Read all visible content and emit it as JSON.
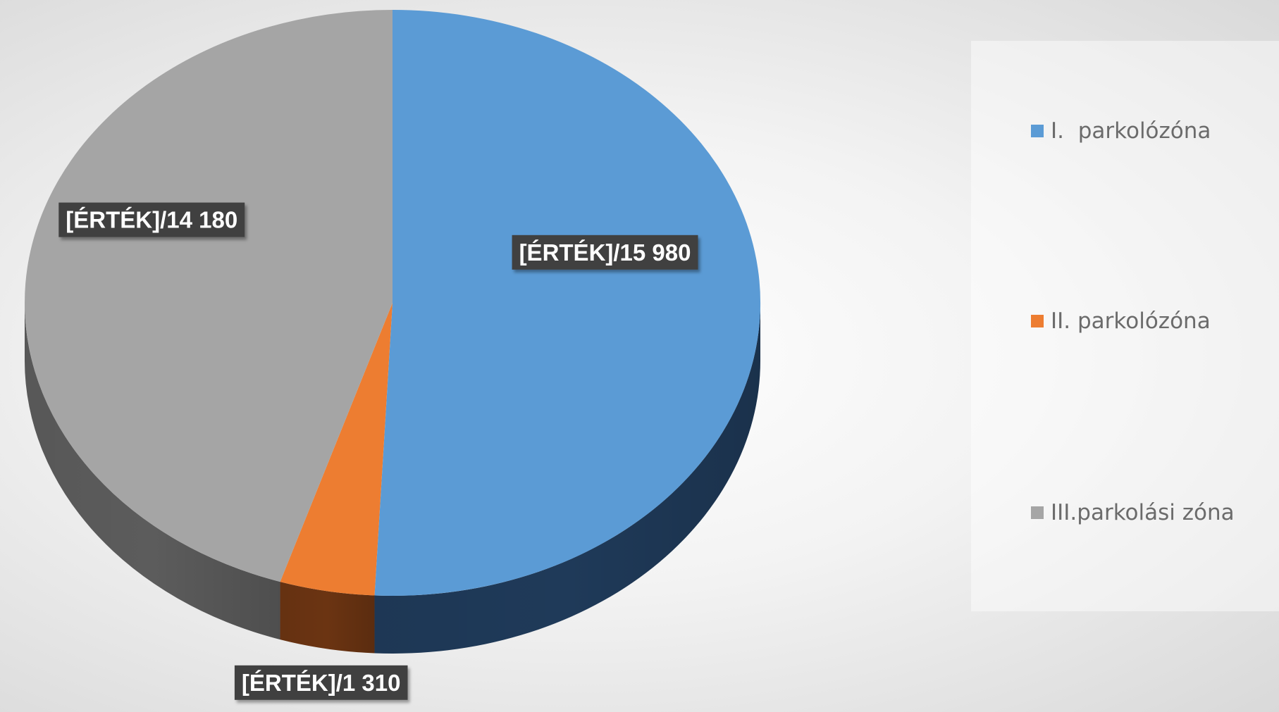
{
  "chart_data": {
    "type": "pie",
    "style": "3d",
    "series": [
      {
        "name": "I.  parkolózóna",
        "value": 15980,
        "color": "#5b9bd5",
        "side_color": "#1f3a59",
        "label": "[ÉRTÉK]/15 980"
      },
      {
        "name": "II. parkolózóna",
        "value": 1310,
        "color": "#ed7d31",
        "side_color": "#6b3412",
        "label": "[ÉRTÉK]/1 310"
      },
      {
        "name": "III.parkolási zóna",
        "value": 14180,
        "color": "#a5a5a5",
        "side_color": "#5c5c5c",
        "label": "[ÉRTÉK]/14 180"
      }
    ],
    "legend": {
      "position": "right"
    }
  }
}
